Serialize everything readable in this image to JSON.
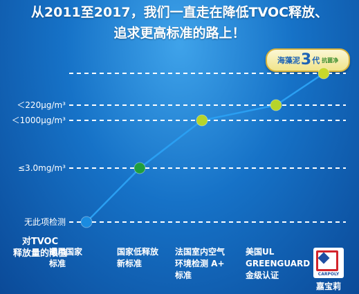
{
  "headline": {
    "line1": "从2011至2017，我们一直走在降低TVOC释放、",
    "line2": "追求更高标准的路上！"
  },
  "badge": {
    "text_a": "海藻泥",
    "text_big": "3",
    "text_b": "代",
    "text_small": "抗菌净"
  },
  "row_header": {
    "line1": "对TVOC",
    "line2": "释放量的限值"
  },
  "logo": {
    "name": "CARPOLY",
    "caption": "嘉宝莉"
  },
  "colors": {
    "line": "#2a9ff2",
    "dot_blue": "#1a8be0",
    "dot_green": "#1f9e3e",
    "dot_lime": "#b7d42b",
    "grid": "#ffffff"
  },
  "chart_data": {
    "type": "line",
    "x": [
      "通用国家标准",
      "国家低释放新标准",
      "法国室内空气环境检测 A+标准",
      "美国UL GREENGUARD金级认证",
      "海藻泥3代抗菌净"
    ],
    "x_label_lines": [
      [
        "通用国家",
        "标准"
      ],
      [
        "国家低释放",
        "新标准"
      ],
      [
        "法国室内空气",
        "环境检测 A+",
        "标准"
      ],
      [
        "美国UL",
        "GREENGUARD",
        "金级认证"
      ],
      []
    ],
    "y_levels": [
      "无此项检测",
      "≤3.0mg/m³",
      "＜1000μg/m³",
      "＜220μg/m³",
      ""
    ],
    "series": [
      {
        "values": [
          "无此项检测",
          "≤3.0mg/m³",
          "＜1000μg/m³",
          "＜220μg/m³",
          ""
        ]
      }
    ],
    "point_colors": [
      "#1a8be0",
      "#1f9e3e",
      "#b7d42b",
      "#b7d42b",
      "#c8d82a"
    ],
    "grid": true,
    "grid_style": "dashed"
  }
}
